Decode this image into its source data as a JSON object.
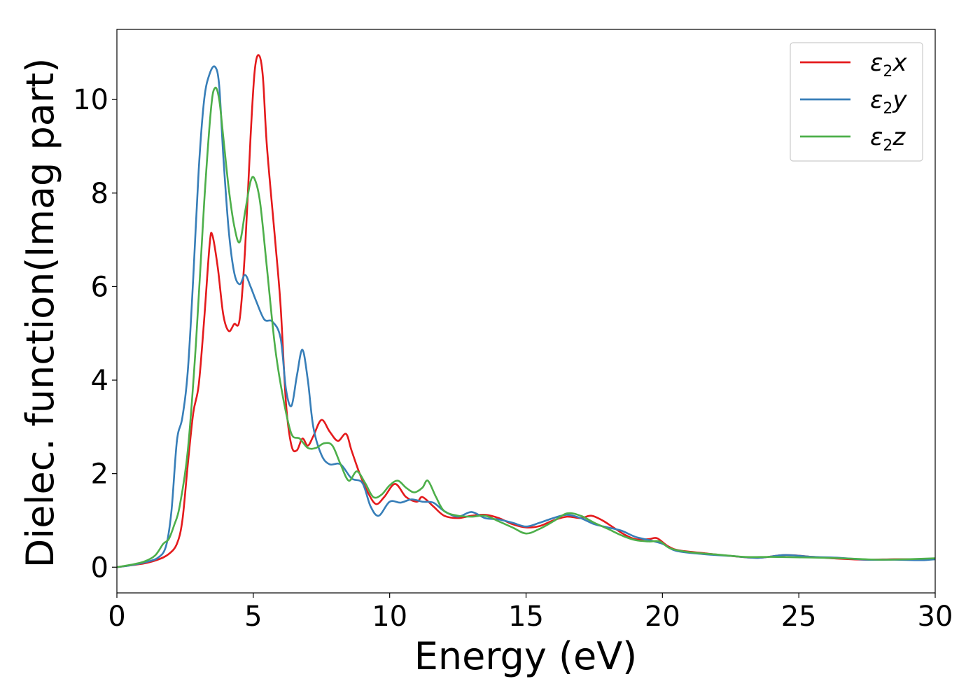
{
  "chart_data": {
    "type": "line",
    "title": "",
    "xlabel": "Energy (eV)",
    "ylabel": "Dielec. function(Imag part)",
    "xlim": [
      0,
      30
    ],
    "ylim": [
      -0.55,
      11.5
    ],
    "xticks": [
      0,
      5,
      10,
      15,
      20,
      25,
      30
    ],
    "yticks": [
      0,
      2,
      4,
      6,
      8,
      10
    ],
    "grid": false,
    "legend_position": "top-right",
    "series": [
      {
        "name": "ε2x",
        "legend_base": "ε",
        "legend_sub": "2",
        "legend_var": "x",
        "color": "#e41a1c",
        "points": [
          [
            0,
            0
          ],
          [
            0.5,
            0.04
          ],
          [
            1.0,
            0.08
          ],
          [
            1.5,
            0.16
          ],
          [
            1.9,
            0.28
          ],
          [
            2.2,
            0.5
          ],
          [
            2.4,
            1.0
          ],
          [
            2.6,
            2.2
          ],
          [
            2.8,
            3.3
          ],
          [
            3.0,
            3.9
          ],
          [
            3.2,
            5.3
          ],
          [
            3.4,
            6.9
          ],
          [
            3.5,
            7.1
          ],
          [
            3.7,
            6.4
          ],
          [
            3.9,
            5.4
          ],
          [
            4.1,
            5.05
          ],
          [
            4.3,
            5.2
          ],
          [
            4.5,
            5.3
          ],
          [
            4.7,
            6.8
          ],
          [
            4.9,
            9.2
          ],
          [
            5.05,
            10.6
          ],
          [
            5.2,
            10.95
          ],
          [
            5.35,
            10.5
          ],
          [
            5.5,
            9.0
          ],
          [
            5.8,
            7.0
          ],
          [
            6.0,
            5.6
          ],
          [
            6.2,
            3.5
          ],
          [
            6.4,
            2.6
          ],
          [
            6.6,
            2.5
          ],
          [
            6.8,
            2.75
          ],
          [
            7.0,
            2.6
          ],
          [
            7.2,
            2.8
          ],
          [
            7.5,
            3.15
          ],
          [
            7.8,
            2.9
          ],
          [
            8.1,
            2.7
          ],
          [
            8.4,
            2.85
          ],
          [
            8.6,
            2.5
          ],
          [
            8.9,
            2.0
          ],
          [
            9.2,
            1.6
          ],
          [
            9.5,
            1.35
          ],
          [
            9.8,
            1.5
          ],
          [
            10.2,
            1.78
          ],
          [
            10.6,
            1.5
          ],
          [
            11.0,
            1.4
          ],
          [
            11.2,
            1.5
          ],
          [
            11.6,
            1.3
          ],
          [
            12.0,
            1.1
          ],
          [
            12.5,
            1.05
          ],
          [
            13.0,
            1.1
          ],
          [
            13.5,
            1.12
          ],
          [
            14.0,
            1.05
          ],
          [
            14.5,
            0.92
          ],
          [
            15.0,
            0.85
          ],
          [
            15.5,
            0.88
          ],
          [
            16.0,
            1.0
          ],
          [
            16.5,
            1.08
          ],
          [
            17.0,
            1.05
          ],
          [
            17.4,
            1.1
          ],
          [
            17.8,
            1.0
          ],
          [
            18.2,
            0.85
          ],
          [
            18.6,
            0.7
          ],
          [
            19.0,
            0.6
          ],
          [
            19.5,
            0.6
          ],
          [
            19.8,
            0.62
          ],
          [
            20.2,
            0.45
          ],
          [
            20.6,
            0.36
          ],
          [
            21.5,
            0.3
          ],
          [
            22.5,
            0.24
          ],
          [
            23.5,
            0.2
          ],
          [
            24.5,
            0.26
          ],
          [
            25.5,
            0.22
          ],
          [
            26.5,
            0.18
          ],
          [
            27.5,
            0.16
          ],
          [
            28.5,
            0.17
          ],
          [
            29.5,
            0.17
          ],
          [
            30,
            0.18
          ]
        ]
      },
      {
        "name": "ε2y",
        "legend_base": "ε",
        "legend_sub": "2",
        "legend_var": "y",
        "color": "#377eb8",
        "points": [
          [
            0,
            0
          ],
          [
            0.5,
            0.04
          ],
          [
            1.0,
            0.1
          ],
          [
            1.5,
            0.2
          ],
          [
            1.8,
            0.45
          ],
          [
            2.0,
            1.2
          ],
          [
            2.2,
            2.7
          ],
          [
            2.4,
            3.2
          ],
          [
            2.6,
            4.2
          ],
          [
            2.8,
            6.2
          ],
          [
            3.0,
            8.5
          ],
          [
            3.2,
            10.0
          ],
          [
            3.4,
            10.55
          ],
          [
            3.6,
            10.7
          ],
          [
            3.75,
            10.3
          ],
          [
            3.9,
            8.8
          ],
          [
            4.1,
            7.2
          ],
          [
            4.3,
            6.3
          ],
          [
            4.5,
            6.05
          ],
          [
            4.7,
            6.25
          ],
          [
            4.9,
            6.0
          ],
          [
            5.1,
            5.7
          ],
          [
            5.4,
            5.3
          ],
          [
            5.7,
            5.25
          ],
          [
            6.0,
            4.9
          ],
          [
            6.2,
            3.8
          ],
          [
            6.4,
            3.45
          ],
          [
            6.6,
            4.1
          ],
          [
            6.8,
            4.65
          ],
          [
            7.0,
            4.0
          ],
          [
            7.2,
            3.0
          ],
          [
            7.5,
            2.4
          ],
          [
            7.8,
            2.2
          ],
          [
            8.2,
            2.2
          ],
          [
            8.6,
            1.9
          ],
          [
            9.0,
            1.8
          ],
          [
            9.3,
            1.3
          ],
          [
            9.6,
            1.1
          ],
          [
            10.0,
            1.4
          ],
          [
            10.4,
            1.38
          ],
          [
            10.8,
            1.45
          ],
          [
            11.2,
            1.4
          ],
          [
            11.6,
            1.38
          ],
          [
            12.0,
            1.2
          ],
          [
            12.5,
            1.08
          ],
          [
            13.0,
            1.18
          ],
          [
            13.5,
            1.05
          ],
          [
            14.0,
            1.02
          ],
          [
            14.5,
            0.95
          ],
          [
            15.0,
            0.87
          ],
          [
            15.5,
            0.95
          ],
          [
            16.0,
            1.05
          ],
          [
            16.5,
            1.12
          ],
          [
            17.0,
            1.05
          ],
          [
            17.5,
            0.92
          ],
          [
            18.0,
            0.85
          ],
          [
            18.5,
            0.78
          ],
          [
            19.0,
            0.65
          ],
          [
            19.5,
            0.58
          ],
          [
            20.0,
            0.5
          ],
          [
            20.5,
            0.35
          ],
          [
            21.5,
            0.28
          ],
          [
            22.5,
            0.24
          ],
          [
            23.5,
            0.2
          ],
          [
            24.5,
            0.26
          ],
          [
            25.5,
            0.22
          ],
          [
            26.5,
            0.2
          ],
          [
            27.5,
            0.16
          ],
          [
            28.5,
            0.16
          ],
          [
            29.5,
            0.15
          ],
          [
            30,
            0.17
          ]
        ]
      },
      {
        "name": "ε2z",
        "legend_base": "ε",
        "legend_sub": "2",
        "legend_var": "z",
        "color": "#4daf4a",
        "points": [
          [
            0,
            0
          ],
          [
            0.5,
            0.05
          ],
          [
            1.0,
            0.12
          ],
          [
            1.4,
            0.25
          ],
          [
            1.7,
            0.5
          ],
          [
            1.9,
            0.6
          ],
          [
            2.1,
            0.9
          ],
          [
            2.3,
            1.3
          ],
          [
            2.6,
            2.5
          ],
          [
            2.9,
            4.8
          ],
          [
            3.2,
            7.8
          ],
          [
            3.45,
            9.8
          ],
          [
            3.6,
            10.25
          ],
          [
            3.75,
            10.0
          ],
          [
            3.9,
            9.2
          ],
          [
            4.1,
            8.1
          ],
          [
            4.3,
            7.3
          ],
          [
            4.5,
            6.95
          ],
          [
            4.7,
            7.6
          ],
          [
            4.9,
            8.25
          ],
          [
            5.05,
            8.3
          ],
          [
            5.25,
            7.8
          ],
          [
            5.5,
            6.4
          ],
          [
            5.8,
            4.7
          ],
          [
            6.1,
            3.6
          ],
          [
            6.4,
            2.85
          ],
          [
            6.7,
            2.75
          ],
          [
            7.0,
            2.55
          ],
          [
            7.3,
            2.55
          ],
          [
            7.6,
            2.65
          ],
          [
            7.9,
            2.6
          ],
          [
            8.2,
            2.2
          ],
          [
            8.5,
            1.85
          ],
          [
            8.8,
            2.05
          ],
          [
            9.1,
            1.8
          ],
          [
            9.4,
            1.5
          ],
          [
            9.7,
            1.55
          ],
          [
            10.0,
            1.75
          ],
          [
            10.3,
            1.85
          ],
          [
            10.6,
            1.7
          ],
          [
            10.9,
            1.6
          ],
          [
            11.2,
            1.7
          ],
          [
            11.4,
            1.85
          ],
          [
            11.7,
            1.5
          ],
          [
            12.0,
            1.2
          ],
          [
            12.5,
            1.1
          ],
          [
            13.0,
            1.08
          ],
          [
            13.5,
            1.1
          ],
          [
            14.0,
            0.98
          ],
          [
            14.5,
            0.85
          ],
          [
            15.0,
            0.72
          ],
          [
            15.5,
            0.82
          ],
          [
            16.0,
            0.98
          ],
          [
            16.5,
            1.15
          ],
          [
            17.0,
            1.1
          ],
          [
            17.5,
            0.95
          ],
          [
            18.0,
            0.82
          ],
          [
            18.5,
            0.68
          ],
          [
            19.0,
            0.58
          ],
          [
            19.5,
            0.55
          ],
          [
            19.9,
            0.55
          ],
          [
            20.3,
            0.4
          ],
          [
            21.0,
            0.32
          ],
          [
            22.0,
            0.27
          ],
          [
            23.0,
            0.22
          ],
          [
            24.0,
            0.22
          ],
          [
            25.0,
            0.21
          ],
          [
            26.0,
            0.2
          ],
          [
            27.0,
            0.18
          ],
          [
            28.0,
            0.16
          ],
          [
            29.0,
            0.17
          ],
          [
            30,
            0.19
          ]
        ]
      }
    ]
  }
}
